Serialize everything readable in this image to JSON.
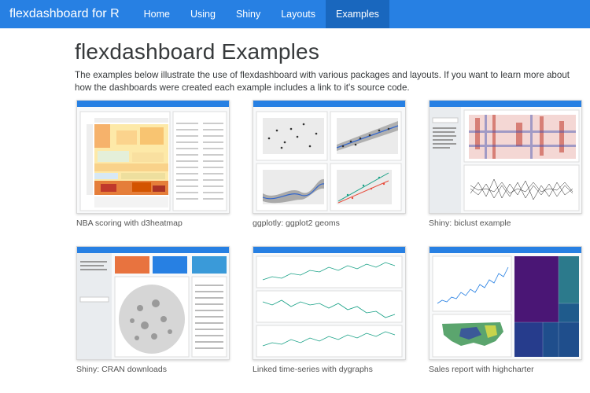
{
  "navbar": {
    "brand": "flexdashboard for R",
    "items": [
      {
        "label": "Home",
        "active": false
      },
      {
        "label": "Using",
        "active": false
      },
      {
        "label": "Shiny",
        "active": false
      },
      {
        "label": "Layouts",
        "active": false
      },
      {
        "label": "Examples",
        "active": true
      }
    ]
  },
  "page": {
    "title": "flexdashboard Examples",
    "intro": "The examples below illustrate the use of flexdashboard with various packages and layouts. If you want to learn more about how the dashboards were created each example includes a link to it's source code."
  },
  "examples": [
    {
      "caption": "NBA scoring with d3heatmap"
    },
    {
      "caption": "ggplotly: ggplot2 geoms"
    },
    {
      "caption": "Shiny: biclust example"
    },
    {
      "caption": "Shiny: CRAN downloads"
    },
    {
      "caption": "Linked time-series with dygraphs"
    },
    {
      "caption": "Sales report with highcharter"
    }
  ],
  "colors": {
    "navbar": "#2780e3",
    "active": "#1967be"
  }
}
